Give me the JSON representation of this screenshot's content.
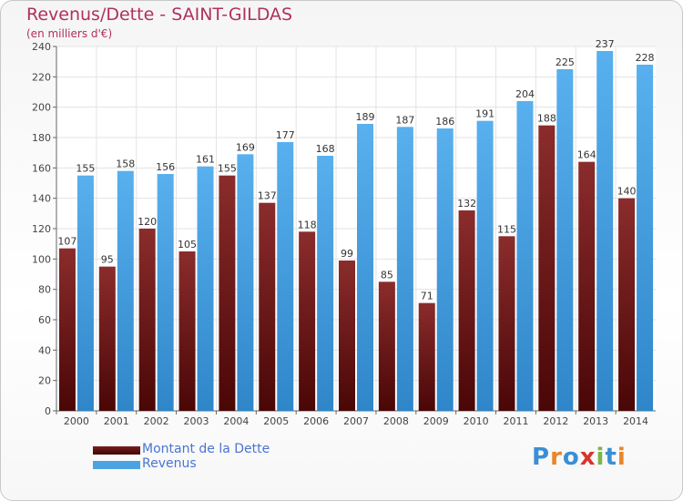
{
  "title": "Revenus/Dette - SAINT-GILDAS",
  "subtitle": "(en milliers d'€)",
  "chart_data": {
    "type": "bar",
    "categories": [
      "2000",
      "2001",
      "2002",
      "2003",
      "2004",
      "2005",
      "2006",
      "2007",
      "2008",
      "2009",
      "2010",
      "2011",
      "2012",
      "2013",
      "2014"
    ],
    "series": [
      {
        "name": "Montant de la Dette",
        "color": "#7a1f1f",
        "values": [
          107,
          95,
          120,
          105,
          155,
          137,
          118,
          99,
          85,
          71,
          132,
          115,
          188,
          164,
          140
        ]
      },
      {
        "name": "Revenus",
        "color": "#4aa3e3",
        "values": [
          155,
          158,
          156,
          161,
          169,
          177,
          168,
          189,
          187,
          186,
          191,
          204,
          225,
          237,
          228
        ]
      }
    ],
    "ylim": [
      0,
      240
    ],
    "yticks": [
      0,
      20,
      40,
      60,
      80,
      100,
      120,
      140,
      160,
      180,
      200,
      220,
      240
    ],
    "grid": true,
    "legend_position": "bottom-left"
  },
  "legend": {
    "items": [
      {
        "label": "Montant de la Dette",
        "color": "#6b1515"
      },
      {
        "label": "Revenus",
        "color": "#4aa3e3"
      }
    ]
  },
  "logo": {
    "text": "Proxiti"
  }
}
